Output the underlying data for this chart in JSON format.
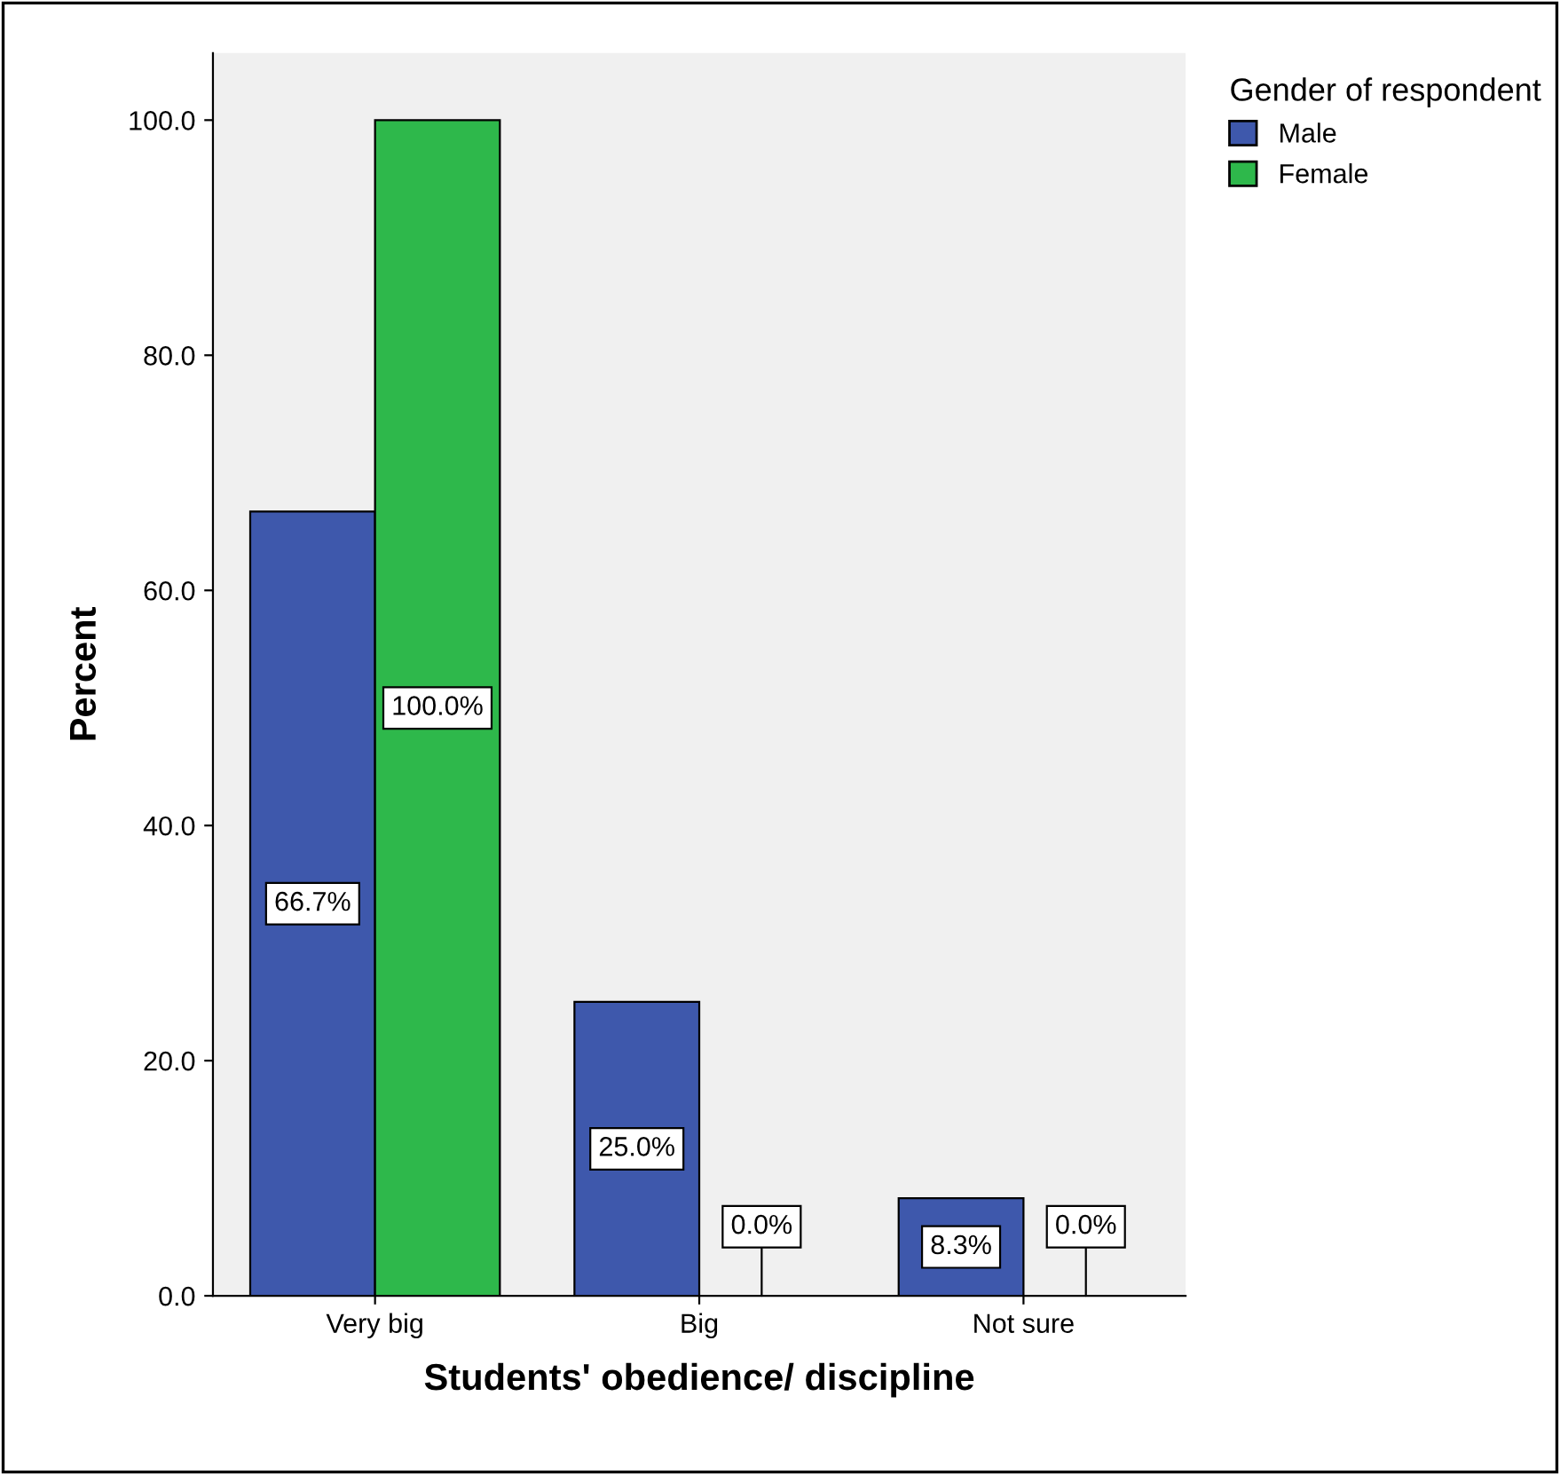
{
  "chart_data": {
    "type": "bar",
    "xlabel": "Students' obedience/ discipline",
    "ylabel": "Percent",
    "legend_title": "Gender of respondent",
    "categories": [
      "Very big",
      "Big",
      "Not sure"
    ],
    "series": [
      {
        "name": "Male",
        "color": "#3e58ac",
        "values": [
          66.7,
          25.0,
          8.3
        ],
        "value_labels": [
          "66.7%",
          "25.0%",
          "8.3%"
        ]
      },
      {
        "name": "Female",
        "color": "#2eb84b",
        "values": [
          100.0,
          0.0,
          0.0
        ],
        "value_labels": [
          "100.0%",
          "0.0%",
          "0.0%"
        ]
      }
    ],
    "ylim": [
      0,
      105.7
    ],
    "yticks": [
      {
        "value": 0,
        "label": "0.0"
      },
      {
        "value": 20,
        "label": "20.0"
      },
      {
        "value": 40,
        "label": "40.0"
      },
      {
        "value": 60,
        "label": "60.0"
      },
      {
        "value": 80,
        "label": "80.0"
      },
      {
        "value": 100,
        "label": "100.0"
      }
    ],
    "grid": false,
    "legend": "top right"
  }
}
